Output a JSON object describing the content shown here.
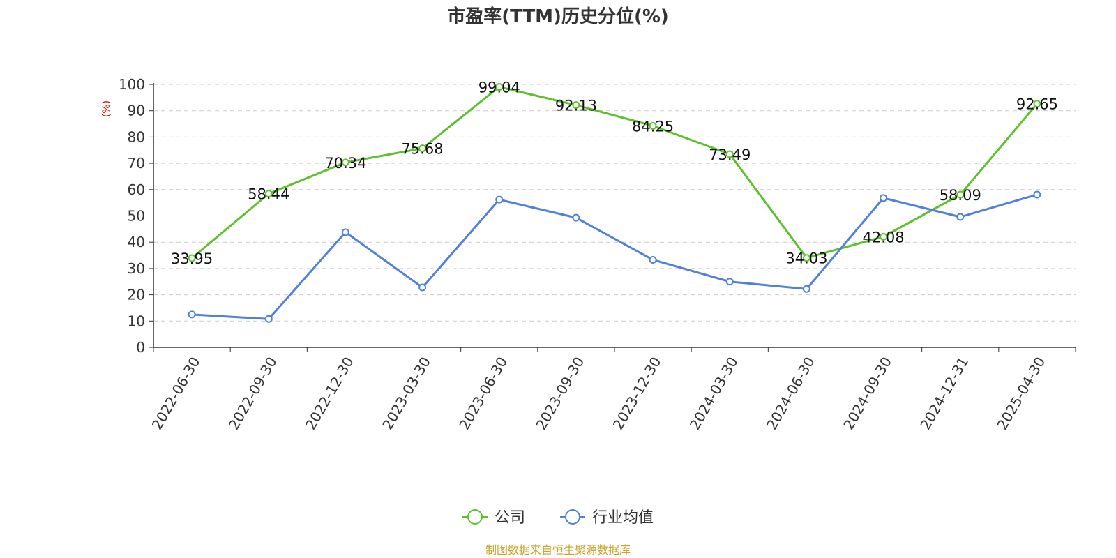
{
  "chart_data": {
    "type": "line",
    "title": "市盈率(TTM)历史分位(%)",
    "ylabel": "(%)",
    "ylim": [
      0,
      100
    ],
    "yticks": [
      "0",
      "10",
      "20",
      "30",
      "40",
      "50",
      "60",
      "70",
      "80",
      "90",
      "100"
    ],
    "grid": true,
    "categories": [
      "2022-06-30",
      "2022-09-30",
      "2022-12-30",
      "2023-03-30",
      "2023-06-30",
      "2023-09-30",
      "2023-12-30",
      "2024-03-30",
      "2024-06-30",
      "2024-09-30",
      "2024-12-31",
      "2025-04-30"
    ],
    "series": [
      {
        "name": "公司",
        "color": "#5cc12b",
        "values": [
          33.95,
          58.44,
          70.34,
          75.68,
          99.04,
          92.13,
          84.25,
          73.49,
          34.03,
          42.08,
          58.09,
          92.65
        ],
        "labels": [
          "33.95",
          "58.44",
          "70.34",
          "75.68",
          "99.04",
          "92.13",
          "84.25",
          "73.49",
          "34.03",
          "42.08",
          "58.09",
          "92.65"
        ]
      },
      {
        "name": "行业均值",
        "color": "#4f81dc",
        "values": [
          12.5,
          10.8,
          43.8,
          22.8,
          56.2,
          49.3,
          33.3,
          25.0,
          22.2,
          56.8,
          49.6,
          58.1
        ]
      }
    ],
    "legend_position": "bottom-center",
    "source": "制图数据来自恒生聚源数据库"
  }
}
